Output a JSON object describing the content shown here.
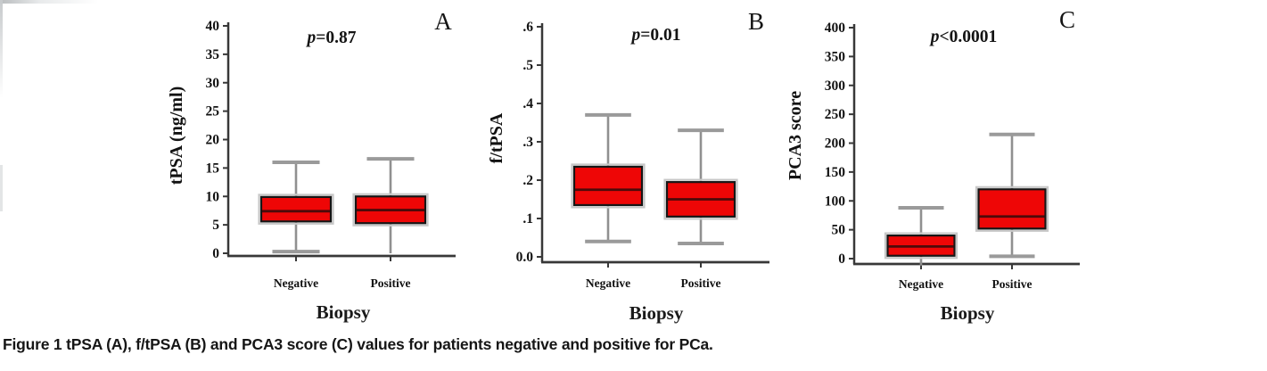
{
  "figure": {
    "caption_label": "Figure 1",
    "caption_text": " tPSA (A), f/tPSA (B) and PCA3 score (C) values for patients negative and positive for PCa."
  },
  "colors": {
    "box_fill": "#ee0606",
    "box_border": "#161616",
    "box_halo": "#c8c8c8",
    "median": "#4d0a0a",
    "whisker": "#909090",
    "whisker_cap": "#9a9a9a",
    "axis": "#383838",
    "text": "#121212",
    "background": "#ffffff"
  },
  "chart_data": [
    {
      "type": "box",
      "panel_letter": "A",
      "p_label": "p=0.87",
      "ylabel": "tPSA (ng/ml)",
      "xlabel": "Biopsy",
      "categories": [
        "Negative",
        "Positive"
      ],
      "ylim": [
        0,
        40
      ],
      "yticks": [
        0,
        5,
        10,
        15,
        20,
        25,
        30,
        35,
        40
      ],
      "ytick_labels": [
        "0",
        "5",
        "10",
        "15",
        "20",
        "25",
        "30",
        "35",
        "40"
      ],
      "grid": false,
      "boxes": [
        {
          "category": "Negative",
          "low": 0.3,
          "q1": 5.6,
          "median": 7.4,
          "q3": 9.9,
          "high": 16.0,
          "low_cap": true
        },
        {
          "category": "Positive",
          "low": 0.0,
          "q1": 5.3,
          "median": 7.6,
          "q3": 10.0,
          "high": 16.6,
          "low_cap": false
        }
      ]
    },
    {
      "type": "box",
      "panel_letter": "B",
      "p_label": "p=0.01",
      "ylabel": "f/tPSA",
      "xlabel": "Biopsy",
      "categories": [
        "Negative",
        "Positive"
      ],
      "ylim": [
        0,
        0.6
      ],
      "yticks": [
        0,
        0.1,
        0.2,
        0.3,
        0.4,
        0.5,
        0.6
      ],
      "ytick_labels": [
        "0.0",
        ".1",
        ".2",
        ".3",
        ".4",
        ".5",
        ".6"
      ],
      "grid": false,
      "boxes": [
        {
          "category": "Negative",
          "low": 0.04,
          "q1": 0.135,
          "median": 0.175,
          "q3": 0.235,
          "high": 0.37,
          "low_cap": true
        },
        {
          "category": "Positive",
          "low": 0.035,
          "q1": 0.105,
          "median": 0.15,
          "q3": 0.195,
          "high": 0.33,
          "low_cap": true
        }
      ]
    },
    {
      "type": "box",
      "panel_letter": "C",
      "p_label": "p<0.0001",
      "ylabel": "PCA3 score",
      "xlabel": "Biopsy",
      "categories": [
        "Negative",
        "Positive"
      ],
      "ylim": [
        0,
        400
      ],
      "yticks": [
        0,
        50,
        100,
        150,
        200,
        250,
        300,
        350,
        400
      ],
      "ytick_labels": [
        "0",
        "50",
        "100",
        "150",
        "200",
        "250",
        "300",
        "350",
        "400"
      ],
      "grid": false,
      "boxes": [
        {
          "category": "Negative",
          "low": -12,
          "q1": 5,
          "median": 21,
          "q3": 40,
          "high": 88,
          "low_cap": false
        },
        {
          "category": "Positive",
          "low": 4,
          "q1": 52,
          "median": 73,
          "q3": 120,
          "high": 215,
          "low_cap": true
        }
      ]
    }
  ]
}
